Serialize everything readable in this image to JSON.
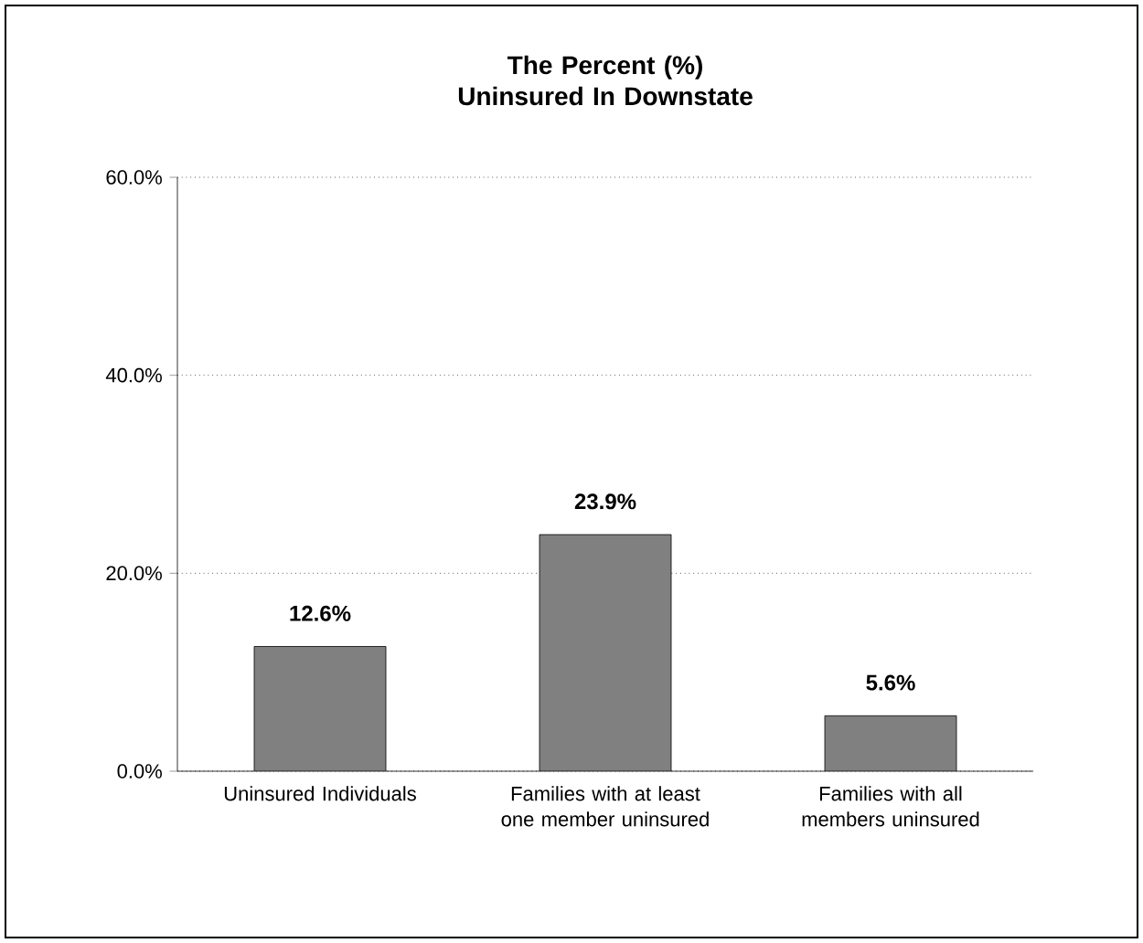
{
  "chart_data": {
    "type": "bar",
    "title": "The Percent (%) Uninsured In Downstate",
    "categories": [
      "Uninsured Individuals",
      "Families with at least one member uninsured",
      "Families with all members uninsured"
    ],
    "values": [
      12.6,
      23.9,
      5.6
    ],
    "value_labels": [
      "12.6%",
      "23.9%",
      "5.6%"
    ],
    "color": "#808080",
    "ylim": [
      0,
      60
    ],
    "yticks": [
      {
        "value": 0,
        "label": "0.0%"
      },
      {
        "value": 20,
        "label": "20.0%"
      },
      {
        "value": 40,
        "label": "40.0%"
      },
      {
        "value": 60,
        "label": "60.0%"
      }
    ],
    "grid": "y"
  }
}
